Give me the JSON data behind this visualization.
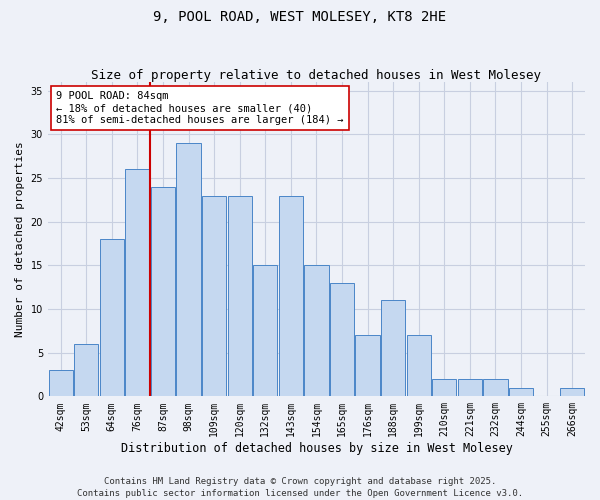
{
  "title": "9, POOL ROAD, WEST MOLESEY, KT8 2HE",
  "subtitle": "Size of property relative to detached houses in West Molesey",
  "xlabel": "Distribution of detached houses by size in West Molesey",
  "ylabel": "Number of detached properties",
  "categories": [
    "42sqm",
    "53sqm",
    "64sqm",
    "76sqm",
    "87sqm",
    "98sqm",
    "109sqm",
    "120sqm",
    "132sqm",
    "143sqm",
    "154sqm",
    "165sqm",
    "176sqm",
    "188sqm",
    "199sqm",
    "210sqm",
    "221sqm",
    "232sqm",
    "244sqm",
    "255sqm",
    "266sqm"
  ],
  "values": [
    3,
    6,
    18,
    26,
    24,
    29,
    23,
    23,
    15,
    23,
    15,
    13,
    7,
    11,
    7,
    2,
    2,
    2,
    1,
    0,
    1
  ],
  "bar_color": "#c5d8f0",
  "bar_edge_color": "#4a86c8",
  "vline_index": 4,
  "vline_color": "#cc0000",
  "annotation_text": "9 POOL ROAD: 84sqm\n← 18% of detached houses are smaller (40)\n81% of semi-detached houses are larger (184) →",
  "annotation_box_facecolor": "#ffffff",
  "annotation_box_edgecolor": "#cc0000",
  "ylim": [
    0,
    36
  ],
  "yticks": [
    0,
    5,
    10,
    15,
    20,
    25,
    30,
    35
  ],
  "grid_color": "#c8cfe0",
  "background_color": "#eef1f8",
  "footer_text": "Contains HM Land Registry data © Crown copyright and database right 2025.\nContains public sector information licensed under the Open Government Licence v3.0.",
  "title_fontsize": 10,
  "subtitle_fontsize": 9,
  "xlabel_fontsize": 8.5,
  "ylabel_fontsize": 8,
  "tick_fontsize": 7,
  "annotation_fontsize": 7.5,
  "footer_fontsize": 6.5
}
